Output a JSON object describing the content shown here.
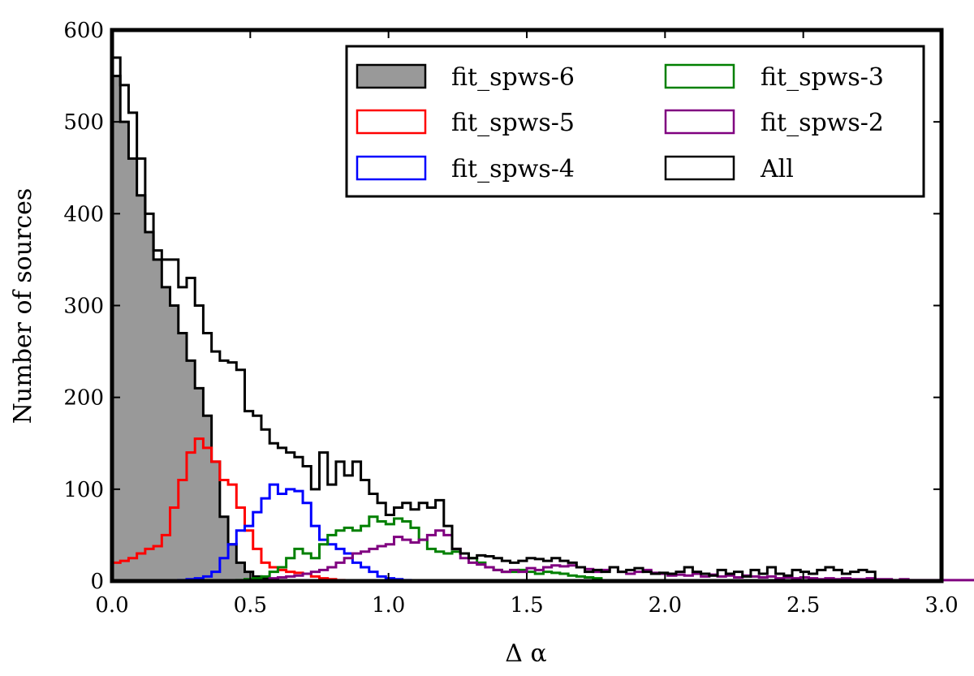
{
  "chart_data": {
    "type": "histogram",
    "xlabel": "Δ α",
    "ylabel": "Number of sources",
    "xlim": [
      0.0,
      3.0
    ],
    "ylim": [
      0,
      600
    ],
    "xticks": [
      "0.0",
      "0.5",
      "1.0",
      "1.5",
      "2.0",
      "2.5",
      "3.0"
    ],
    "yticks": [
      "0",
      "100",
      "200",
      "300",
      "400",
      "500",
      "600"
    ],
    "legend_position": "top-right",
    "bin_width": 0.03,
    "series": [
      {
        "name": "fit_spws-6",
        "color": "#999999",
        "filled": true,
        "start": 0.0,
        "values": [
          550,
          500,
          460,
          420,
          380,
          350,
          320,
          300,
          270,
          240,
          210,
          180,
          130,
          70,
          40,
          20,
          10,
          5,
          3,
          2
        ]
      },
      {
        "name": "fit_spws-5",
        "color": "#ff0000",
        "filled": false,
        "start": 0.0,
        "values": [
          20,
          22,
          25,
          30,
          35,
          38,
          50,
          80,
          110,
          140,
          155,
          145,
          130,
          110,
          105,
          80,
          55,
          35,
          20,
          15,
          12,
          10,
          9,
          8,
          5,
          3,
          2,
          1
        ]
      },
      {
        "name": "fit_spws-4",
        "color": "#0000ff",
        "filled": false,
        "start": 0.24,
        "values": [
          1,
          2,
          3,
          5,
          10,
          25,
          40,
          55,
          60,
          75,
          90,
          105,
          95,
          100,
          98,
          85,
          60,
          45,
          40,
          35,
          30,
          20,
          15,
          10,
          5,
          3,
          2,
          1
        ]
      },
      {
        "name": "fit_spws-3",
        "color": "#008000",
        "filled": false,
        "start": 0.45,
        "values": [
          1,
          2,
          3,
          5,
          10,
          15,
          25,
          35,
          30,
          25,
          40,
          50,
          55,
          58,
          55,
          60,
          70,
          65,
          62,
          68,
          65,
          58,
          45,
          35,
          32,
          30,
          32,
          30,
          25,
          20,
          15,
          12,
          10,
          10,
          12,
          10,
          8,
          10,
          9,
          8,
          6,
          5,
          4,
          3
        ]
      },
      {
        "name": "fit_spws-2",
        "color": "#800080",
        "filled": false,
        "start": 0.57,
        "values": [
          3,
          4,
          5,
          6,
          8,
          10,
          12,
          15,
          20,
          25,
          30,
          32,
          35,
          38,
          40,
          48,
          45,
          42,
          45,
          50,
          55,
          50,
          35,
          25,
          20,
          18,
          15,
          12,
          10,
          12,
          10,
          14,
          12,
          15,
          17,
          16,
          17,
          15,
          13,
          10,
          12,
          15,
          10,
          8,
          10,
          12,
          9,
          8,
          6,
          7,
          6,
          8,
          5,
          7,
          5,
          6,
          4,
          6,
          5,
          4,
          5,
          3,
          4,
          3,
          4,
          3,
          2,
          3,
          2,
          3,
          2,
          2,
          3,
          2,
          2,
          1,
          2,
          1,
          1,
          1,
          1,
          1,
          1,
          1,
          1,
          1,
          1,
          1,
          1,
          1
        ]
      },
      {
        "name": "All",
        "color": "#000000",
        "filled": false,
        "start": 0.0,
        "values": [
          570,
          540,
          510,
          460,
          400,
          360,
          350,
          350,
          320,
          330,
          300,
          270,
          250,
          240,
          238,
          230,
          185,
          180,
          165,
          150,
          145,
          140,
          135,
          125,
          100,
          140,
          105,
          130,
          115,
          130,
          110,
          95,
          85,
          72,
          80,
          85,
          78,
          85,
          80,
          88,
          60,
          35,
          30,
          25,
          28,
          27,
          25,
          22,
          20,
          22,
          25,
          24,
          22,
          25,
          22,
          20,
          15,
          10,
          12,
          10,
          15,
          10,
          12,
          14,
          10,
          8,
          9,
          8,
          10,
          15,
          10,
          8,
          6,
          12,
          8,
          10,
          5,
          12,
          8,
          15,
          8,
          6,
          12,
          10,
          8,
          12,
          15,
          12,
          8,
          10,
          12,
          10
        ]
      }
    ]
  }
}
